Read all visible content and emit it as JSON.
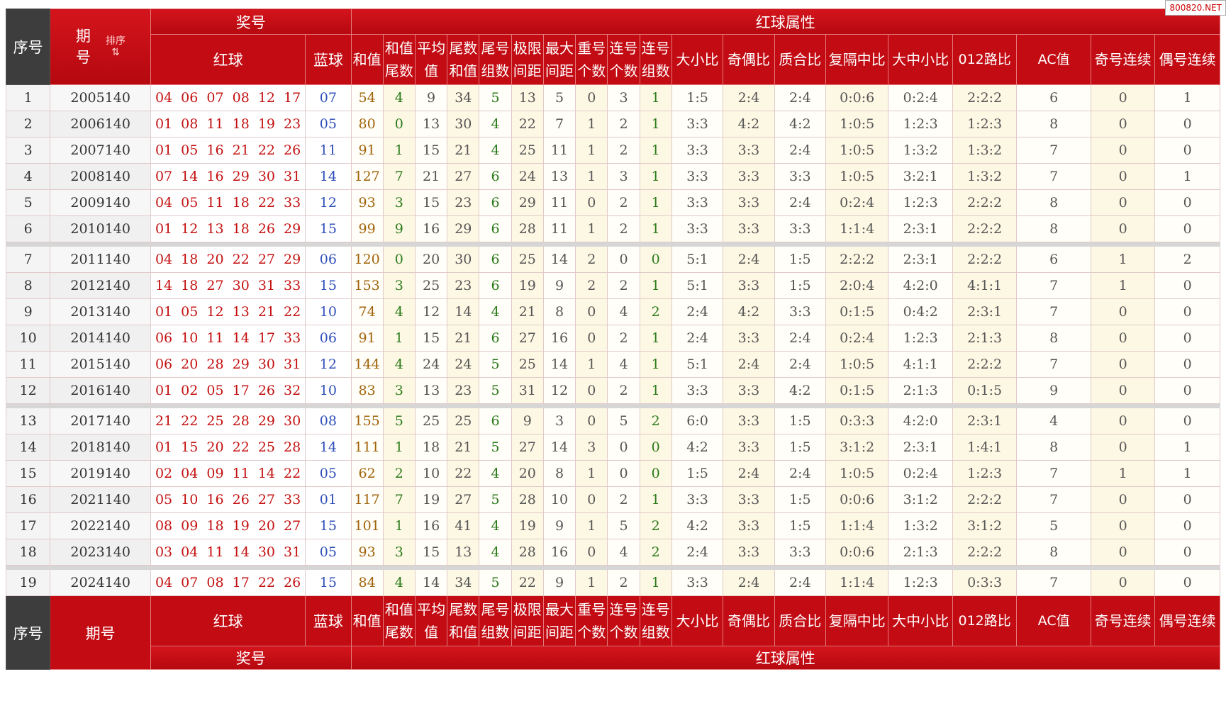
{
  "watermark": "800820.NET",
  "header": {
    "serial": "序号",
    "period_top": "期号",
    "sort_label": "排序",
    "draw_group": "奖号",
    "red_attr_group": "红球属性",
    "red": "红球",
    "blue": "蓝球",
    "cols": [
      "和值",
      "和值尾数",
      "平均值",
      "尾数和值",
      "尾号组数",
      "极限间距",
      "最大间距",
      "重号个数",
      "连号个数",
      "连号组数",
      "大小比",
      "奇偶比",
      "质合比",
      "复隔中比",
      "大中小比",
      "012路比",
      "AC值",
      "奇号连续",
      "偶号连续"
    ]
  },
  "footer": {
    "serial": "序号",
    "period": "期号",
    "red": "红球",
    "blue": "蓝球",
    "draw_group": "奖号",
    "red_attr_group": "红球属性"
  },
  "rows": [
    {
      "no": "1",
      "period": "2005140",
      "red": "04 06 07 08 12 17",
      "blue": "07",
      "sum": "54",
      "sum_tail": "4",
      "avg": "9",
      "tail_sum": "34",
      "tail_groups": "5",
      "span": "13",
      "max_gap": "5",
      "repeat": "0",
      "consec": "3",
      "consec_groups": "1",
      "big_small": "1:5",
      "odd_even": "2:4",
      "prime": "2:4",
      "fgz": "0:0:6",
      "dzx": "0:2:4",
      "r012": "2:2:2",
      "ac": "6",
      "odd_run": "0",
      "even_run": "1"
    },
    {
      "no": "2",
      "period": "2006140",
      "red": "01 08 11 18 19 23",
      "blue": "05",
      "sum": "80",
      "sum_tail": "0",
      "avg": "13",
      "tail_sum": "30",
      "tail_groups": "4",
      "span": "22",
      "max_gap": "7",
      "repeat": "1",
      "consec": "2",
      "consec_groups": "1",
      "big_small": "3:3",
      "odd_even": "4:2",
      "prime": "4:2",
      "fgz": "1:0:5",
      "dzx": "1:2:3",
      "r012": "1:2:3",
      "ac": "8",
      "odd_run": "0",
      "even_run": "0"
    },
    {
      "no": "3",
      "period": "2007140",
      "red": "01 05 16 21 22 26",
      "blue": "11",
      "sum": "91",
      "sum_tail": "1",
      "avg": "15",
      "tail_sum": "21",
      "tail_groups": "4",
      "span": "25",
      "max_gap": "11",
      "repeat": "1",
      "consec": "2",
      "consec_groups": "1",
      "big_small": "3:3",
      "odd_even": "3:3",
      "prime": "2:4",
      "fgz": "1:0:5",
      "dzx": "1:3:2",
      "r012": "1:3:2",
      "ac": "7",
      "odd_run": "0",
      "even_run": "0"
    },
    {
      "no": "4",
      "period": "2008140",
      "red": "07 14 16 29 30 31",
      "blue": "14",
      "sum": "127",
      "sum_tail": "7",
      "avg": "21",
      "tail_sum": "27",
      "tail_groups": "6",
      "span": "24",
      "max_gap": "13",
      "repeat": "1",
      "consec": "3",
      "consec_groups": "1",
      "big_small": "3:3",
      "odd_even": "3:3",
      "prime": "3:3",
      "fgz": "1:0:5",
      "dzx": "3:2:1",
      "r012": "1:3:2",
      "ac": "7",
      "odd_run": "0",
      "even_run": "1"
    },
    {
      "no": "5",
      "period": "2009140",
      "red": "04 05 11 18 22 33",
      "blue": "12",
      "sum": "93",
      "sum_tail": "3",
      "avg": "15",
      "tail_sum": "23",
      "tail_groups": "6",
      "span": "29",
      "max_gap": "11",
      "repeat": "0",
      "consec": "2",
      "consec_groups": "1",
      "big_small": "3:3",
      "odd_even": "3:3",
      "prime": "2:4",
      "fgz": "0:2:4",
      "dzx": "1:2:3",
      "r012": "2:2:2",
      "ac": "8",
      "odd_run": "0",
      "even_run": "0"
    },
    {
      "no": "6",
      "period": "2010140",
      "red": "01 12 13 18 26 29",
      "blue": "15",
      "sum": "99",
      "sum_tail": "9",
      "avg": "16",
      "tail_sum": "29",
      "tail_groups": "6",
      "span": "28",
      "max_gap": "11",
      "repeat": "1",
      "consec": "2",
      "consec_groups": "1",
      "big_small": "3:3",
      "odd_even": "3:3",
      "prime": "3:3",
      "fgz": "1:1:4",
      "dzx": "2:3:1",
      "r012": "2:2:2",
      "ac": "8",
      "odd_run": "0",
      "even_run": "0"
    },
    {
      "no": "7",
      "period": "2011140",
      "red": "04 18 20 22 27 29",
      "blue": "06",
      "sum": "120",
      "sum_tail": "0",
      "avg": "20",
      "tail_sum": "30",
      "tail_groups": "6",
      "span": "25",
      "max_gap": "14",
      "repeat": "2",
      "consec": "0",
      "consec_groups": "0",
      "big_small": "5:1",
      "odd_even": "2:4",
      "prime": "1:5",
      "fgz": "2:2:2",
      "dzx": "2:3:1",
      "r012": "2:2:2",
      "ac": "6",
      "odd_run": "1",
      "even_run": "2"
    },
    {
      "no": "8",
      "period": "2012140",
      "red": "14 18 27 30 31 33",
      "blue": "15",
      "sum": "153",
      "sum_tail": "3",
      "avg": "25",
      "tail_sum": "23",
      "tail_groups": "6",
      "span": "19",
      "max_gap": "9",
      "repeat": "2",
      "consec": "2",
      "consec_groups": "1",
      "big_small": "5:1",
      "odd_even": "3:3",
      "prime": "1:5",
      "fgz": "2:0:4",
      "dzx": "4:2:0",
      "r012": "4:1:1",
      "ac": "7",
      "odd_run": "1",
      "even_run": "0"
    },
    {
      "no": "9",
      "period": "2013140",
      "red": "01 05 12 13 21 22",
      "blue": "10",
      "sum": "74",
      "sum_tail": "4",
      "avg": "12",
      "tail_sum": "14",
      "tail_groups": "4",
      "span": "21",
      "max_gap": "8",
      "repeat": "0",
      "consec": "4",
      "consec_groups": "2",
      "big_small": "2:4",
      "odd_even": "4:2",
      "prime": "3:3",
      "fgz": "0:1:5",
      "dzx": "0:4:2",
      "r012": "2:3:1",
      "ac": "7",
      "odd_run": "0",
      "even_run": "0"
    },
    {
      "no": "10",
      "period": "2014140",
      "red": "06 10 11 14 17 33",
      "blue": "06",
      "sum": "91",
      "sum_tail": "1",
      "avg": "15",
      "tail_sum": "21",
      "tail_groups": "6",
      "span": "27",
      "max_gap": "16",
      "repeat": "0",
      "consec": "2",
      "consec_groups": "1",
      "big_small": "2:4",
      "odd_even": "3:3",
      "prime": "2:4",
      "fgz": "0:2:4",
      "dzx": "1:2:3",
      "r012": "2:1:3",
      "ac": "8",
      "odd_run": "0",
      "even_run": "0"
    },
    {
      "no": "11",
      "period": "2015140",
      "red": "06 20 28 29 30 31",
      "blue": "12",
      "sum": "144",
      "sum_tail": "4",
      "avg": "24",
      "tail_sum": "24",
      "tail_groups": "5",
      "span": "25",
      "max_gap": "14",
      "repeat": "1",
      "consec": "4",
      "consec_groups": "1",
      "big_small": "5:1",
      "odd_even": "2:4",
      "prime": "2:4",
      "fgz": "1:0:5",
      "dzx": "4:1:1",
      "r012": "2:2:2",
      "ac": "7",
      "odd_run": "0",
      "even_run": "0"
    },
    {
      "no": "12",
      "period": "2016140",
      "red": "01 02 05 17 26 32",
      "blue": "10",
      "sum": "83",
      "sum_tail": "3",
      "avg": "13",
      "tail_sum": "23",
      "tail_groups": "5",
      "span": "31",
      "max_gap": "12",
      "repeat": "0",
      "consec": "2",
      "consec_groups": "1",
      "big_small": "3:3",
      "odd_even": "3:3",
      "prime": "4:2",
      "fgz": "0:1:5",
      "dzx": "2:1:3",
      "r012": "0:1:5",
      "ac": "9",
      "odd_run": "0",
      "even_run": "0"
    },
    {
      "no": "13",
      "period": "2017140",
      "red": "21 22 25 28 29 30",
      "blue": "08",
      "sum": "155",
      "sum_tail": "5",
      "avg": "25",
      "tail_sum": "25",
      "tail_groups": "6",
      "span": "9",
      "max_gap": "3",
      "repeat": "0",
      "consec": "5",
      "consec_groups": "2",
      "big_small": "6:0",
      "odd_even": "3:3",
      "prime": "1:5",
      "fgz": "0:3:3",
      "dzx": "4:2:0",
      "r012": "2:3:1",
      "ac": "4",
      "odd_run": "0",
      "even_run": "0"
    },
    {
      "no": "14",
      "period": "2018140",
      "red": "01 15 20 22 25 28",
      "blue": "14",
      "sum": "111",
      "sum_tail": "1",
      "avg": "18",
      "tail_sum": "21",
      "tail_groups": "5",
      "span": "27",
      "max_gap": "14",
      "repeat": "3",
      "consec": "0",
      "consec_groups": "0",
      "big_small": "4:2",
      "odd_even": "3:3",
      "prime": "1:5",
      "fgz": "3:1:2",
      "dzx": "2:3:1",
      "r012": "1:4:1",
      "ac": "8",
      "odd_run": "0",
      "even_run": "1"
    },
    {
      "no": "15",
      "period": "2019140",
      "red": "02 04 09 11 14 22",
      "blue": "05",
      "sum": "62",
      "sum_tail": "2",
      "avg": "10",
      "tail_sum": "22",
      "tail_groups": "4",
      "span": "20",
      "max_gap": "8",
      "repeat": "1",
      "consec": "0",
      "consec_groups": "0",
      "big_small": "1:5",
      "odd_even": "2:4",
      "prime": "2:4",
      "fgz": "1:0:5",
      "dzx": "0:2:4",
      "r012": "1:2:3",
      "ac": "7",
      "odd_run": "1",
      "even_run": "1"
    },
    {
      "no": "16",
      "period": "2021140",
      "red": "05 10 16 26 27 33",
      "blue": "01",
      "sum": "117",
      "sum_tail": "7",
      "avg": "19",
      "tail_sum": "27",
      "tail_groups": "5",
      "span": "28",
      "max_gap": "10",
      "repeat": "0",
      "consec": "2",
      "consec_groups": "1",
      "big_small": "3:3",
      "odd_even": "3:3",
      "prime": "1:5",
      "fgz": "0:0:6",
      "dzx": "3:1:2",
      "r012": "2:2:2",
      "ac": "7",
      "odd_run": "0",
      "even_run": "0"
    },
    {
      "no": "17",
      "period": "2022140",
      "red": "08 09 18 19 20 27",
      "blue": "15",
      "sum": "101",
      "sum_tail": "1",
      "avg": "16",
      "tail_sum": "41",
      "tail_groups": "4",
      "span": "19",
      "max_gap": "9",
      "repeat": "1",
      "consec": "5",
      "consec_groups": "2",
      "big_small": "4:2",
      "odd_even": "3:3",
      "prime": "1:5",
      "fgz": "1:1:4",
      "dzx": "1:3:2",
      "r012": "3:1:2",
      "ac": "5",
      "odd_run": "0",
      "even_run": "0"
    },
    {
      "no": "18",
      "period": "2023140",
      "red": "03 04 11 14 30 31",
      "blue": "05",
      "sum": "93",
      "sum_tail": "3",
      "avg": "15",
      "tail_sum": "13",
      "tail_groups": "4",
      "span": "28",
      "max_gap": "16",
      "repeat": "0",
      "consec": "4",
      "consec_groups": "2",
      "big_small": "2:4",
      "odd_even": "3:3",
      "prime": "3:3",
      "fgz": "0:0:6",
      "dzx": "2:1:3",
      "r012": "2:2:2",
      "ac": "8",
      "odd_run": "0",
      "even_run": "0"
    },
    {
      "no": "19",
      "period": "2024140",
      "red": "04 07 08 17 22 26",
      "blue": "15",
      "sum": "84",
      "sum_tail": "4",
      "avg": "14",
      "tail_sum": "34",
      "tail_groups": "5",
      "span": "22",
      "max_gap": "9",
      "repeat": "1",
      "consec": "2",
      "consec_groups": "1",
      "big_small": "3:3",
      "odd_even": "2:4",
      "prime": "2:4",
      "fgz": "1:1:4",
      "dzx": "1:2:3",
      "r012": "0:3:3",
      "ac": "7",
      "odd_run": "0",
      "even_run": "0"
    }
  ]
}
